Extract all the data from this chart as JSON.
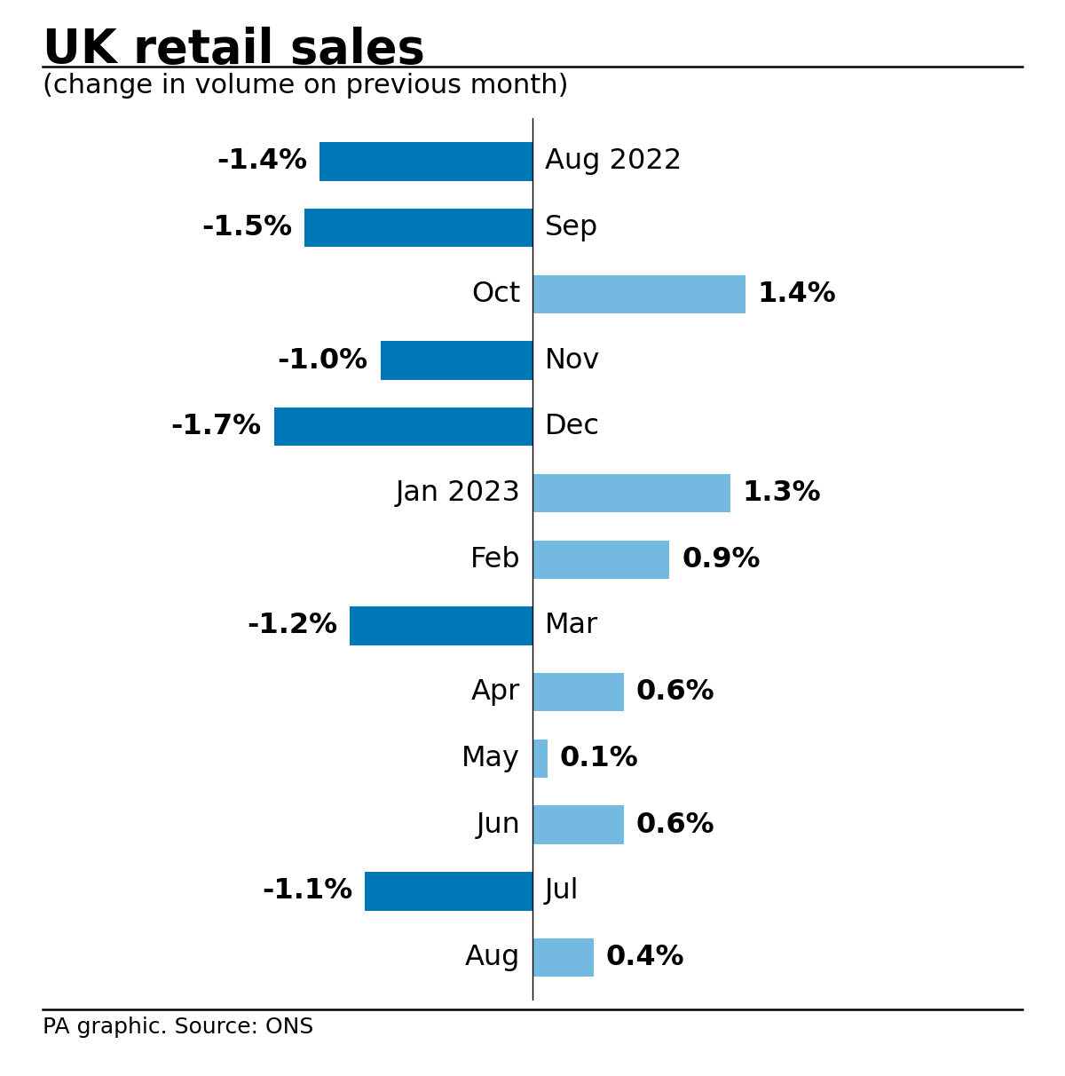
{
  "title": "UK retail sales",
  "subtitle": "(change in volume on previous month)",
  "footer": "PA graphic. Source: ONS",
  "categories": [
    "Aug 2022",
    "Sep",
    "Oct",
    "Nov",
    "Dec",
    "Jan 2023",
    "Feb",
    "Mar",
    "Apr",
    "May",
    "Jun",
    "Jul",
    "Aug"
  ],
  "values": [
    -1.4,
    -1.5,
    1.4,
    -1.0,
    -1.7,
    1.3,
    0.9,
    -1.2,
    0.6,
    0.1,
    0.6,
    -1.1,
    0.4
  ],
  "negative_color": "#0077b6",
  "positive_color": "#74b9e0",
  "background_color": "#ffffff",
  "title_fontsize": 38,
  "subtitle_fontsize": 22,
  "label_fontsize": 23,
  "footer_fontsize": 18,
  "bar_height": 0.58,
  "xlim_left": -3.5,
  "xlim_right": 3.5
}
